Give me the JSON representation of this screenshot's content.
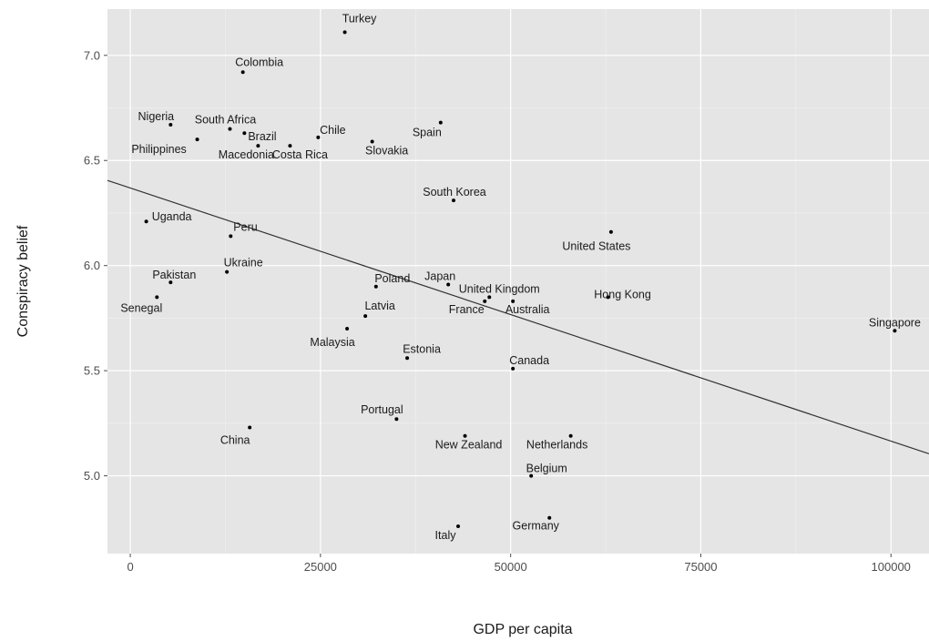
{
  "chart_data": {
    "type": "scatter",
    "title": "",
    "xlabel": "GDP per capita",
    "ylabel": "Conspiracy belief",
    "xlim": [
      -3000,
      105000
    ],
    "ylim": [
      4.63,
      7.22
    ],
    "x_ticks": [
      0,
      25000,
      50000,
      75000,
      100000
    ],
    "x_tick_labels": [
      "0",
      "25000",
      "50000",
      "75000",
      "100000"
    ],
    "y_ticks": [
      5.0,
      5.5,
      6.0,
      6.5,
      7.0
    ],
    "y_tick_labels": [
      "5.0",
      "5.5",
      "6.0",
      "6.5",
      "7.0"
    ],
    "grid": true,
    "background": "#e5e5e5",
    "trend_line": {
      "x": [
        -3000,
        105000
      ],
      "y": [
        6.405,
        5.105
      ]
    },
    "points": [
      {
        "label": "Turkey",
        "x": 28200,
        "y": 7.11
      },
      {
        "label": "Colombia",
        "x": 14800,
        "y": 6.92
      },
      {
        "label": "Nigeria",
        "x": 5300,
        "y": 6.67
      },
      {
        "label": "South Africa",
        "x": 13100,
        "y": 6.65
      },
      {
        "label": "Brazil",
        "x": 15000,
        "y": 6.63
      },
      {
        "label": "Chile",
        "x": 24700,
        "y": 6.61
      },
      {
        "label": "Spain",
        "x": 40800,
        "y": 6.68
      },
      {
        "label": "Philippines",
        "x": 8800,
        "y": 6.6
      },
      {
        "label": "Macedonia",
        "x": 16800,
        "y": 6.57
      },
      {
        "label": "Costa Rica",
        "x": 21000,
        "y": 6.57
      },
      {
        "label": "Slovakia",
        "x": 31800,
        "y": 6.59
      },
      {
        "label": "South Korea",
        "x": 42500,
        "y": 6.31
      },
      {
        "label": "Uganda",
        "x": 2100,
        "y": 6.21
      },
      {
        "label": "Peru",
        "x": 13200,
        "y": 6.14
      },
      {
        "label": "United States",
        "x": 63200,
        "y": 6.16
      },
      {
        "label": "Ukraine",
        "x": 12700,
        "y": 5.97
      },
      {
        "label": "Pakistan",
        "x": 5300,
        "y": 5.92
      },
      {
        "label": "Poland",
        "x": 32300,
        "y": 5.9
      },
      {
        "label": "Japan",
        "x": 41800,
        "y": 5.91
      },
      {
        "label": "United Kingdom",
        "x": 47200,
        "y": 5.85
      },
      {
        "label": "Hong Kong",
        "x": 62800,
        "y": 5.85
      },
      {
        "label": "Senegal",
        "x": 3500,
        "y": 5.85
      },
      {
        "label": "Latvia",
        "x": 30900,
        "y": 5.76
      },
      {
        "label": "France",
        "x": 46600,
        "y": 5.83
      },
      {
        "label": "Australia",
        "x": 50300,
        "y": 5.83
      },
      {
        "label": "Singapore",
        "x": 100500,
        "y": 5.69
      },
      {
        "label": "Malaysia",
        "x": 28500,
        "y": 5.7
      },
      {
        "label": "Estonia",
        "x": 36400,
        "y": 5.56
      },
      {
        "label": "Canada",
        "x": 50300,
        "y": 5.51
      },
      {
        "label": "Portugal",
        "x": 35000,
        "y": 5.27
      },
      {
        "label": "China",
        "x": 15700,
        "y": 5.23
      },
      {
        "label": "New Zealand",
        "x": 44000,
        "y": 5.19
      },
      {
        "label": "Netherlands",
        "x": 57900,
        "y": 5.19
      },
      {
        "label": "Belgium",
        "x": 52700,
        "y": 5.0
      },
      {
        "label": "Germany",
        "x": 55100,
        "y": 4.8
      },
      {
        "label": "Italy",
        "x": 43100,
        "y": 4.76
      }
    ]
  }
}
